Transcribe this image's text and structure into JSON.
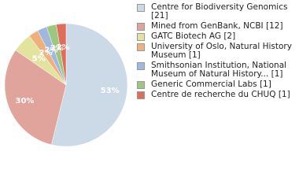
{
  "chart_data": {
    "type": "pie",
    "categories": [
      "Centre for Biodiversity Genomics [21]",
      "Mined from GenBank, NCBI [12]",
      "GATC Biotech AG [2]",
      "University of Oslo, Natural History Museum [1]",
      "Smithsonian Institution, National Museum of Natural History... [1]",
      "Generic Commercial Labs [1]",
      "Centre de recherche du CHUQ [1]"
    ],
    "values": [
      21,
      12,
      2,
      1,
      1,
      1,
      1
    ],
    "value_labels": [
      "53%",
      "30%",
      "5%",
      "2%",
      "2%",
      "2%",
      "2%"
    ],
    "colors": [
      "#ccd9e6",
      "#e0a49c",
      "#e3e3a0",
      "#f0b07d",
      "#9fb8dc",
      "#9cc77e",
      "#e06c5a"
    ],
    "legend": "right"
  }
}
